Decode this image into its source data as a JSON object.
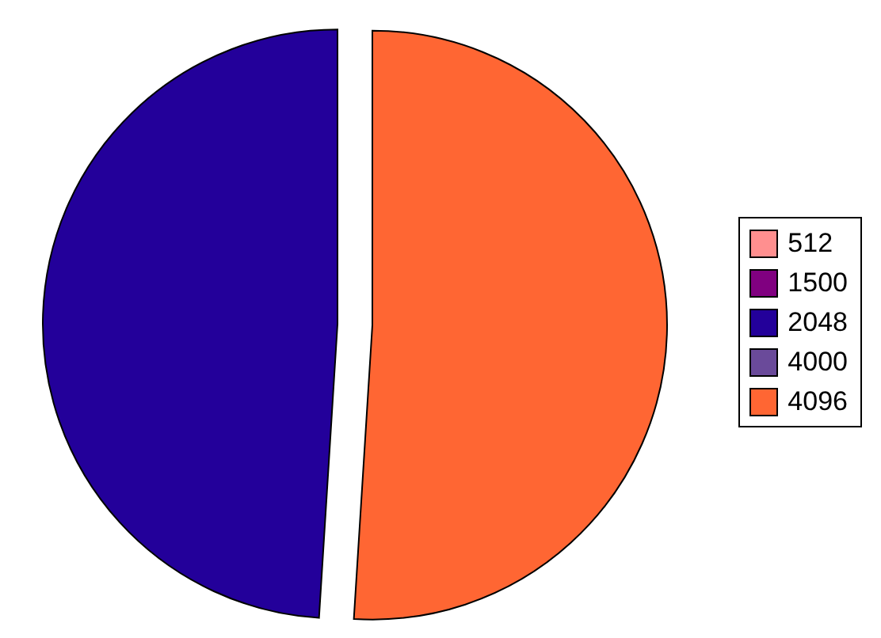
{
  "chart_data": {
    "type": "pie",
    "categories": [
      "512",
      "1500",
      "2048",
      "4000",
      "4096"
    ],
    "values": [
      0,
      0,
      49,
      0,
      51
    ],
    "colors": [
      "#ff8f8f",
      "#800080",
      "#23009a",
      "#6a4a9a",
      "#ff6633"
    ],
    "legend": "right"
  }
}
